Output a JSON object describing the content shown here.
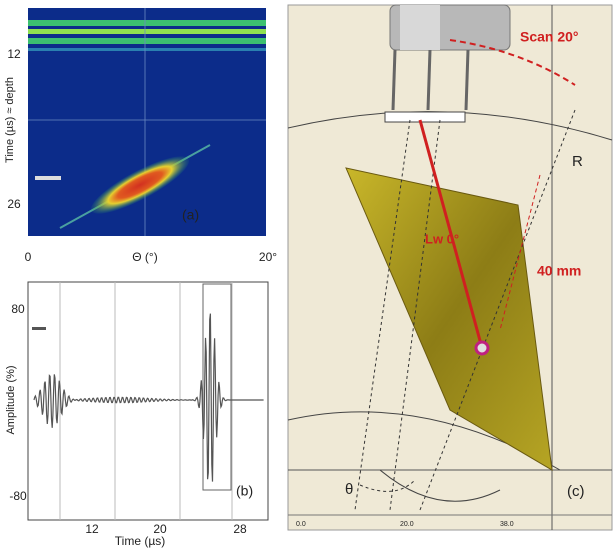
{
  "panel_a": {
    "label": "(a)",
    "y_axis_label": "Time (µs) ≈ depth",
    "y_ticks": [
      "12",
      "26"
    ],
    "x_axis_label": "Θ (°)",
    "x_ticks": [
      "0",
      "20°"
    ]
  },
  "panel_b": {
    "label": "(b)",
    "y_axis_label": "Amplitude (%)",
    "y_ticks": [
      "80",
      "-80"
    ],
    "x_axis_label": "Time (µs)",
    "x_ticks": [
      "12",
      "20",
      "28"
    ]
  },
  "panel_c": {
    "label": "(c)",
    "scan_label": "Scan 20°",
    "radius_label": "R",
    "depth_label": "40 mm",
    "angle_label": "Lw 0°",
    "theta_label": "θ",
    "bottom_ticks": [
      "0.0",
      "20.0",
      "38.0"
    ]
  }
}
